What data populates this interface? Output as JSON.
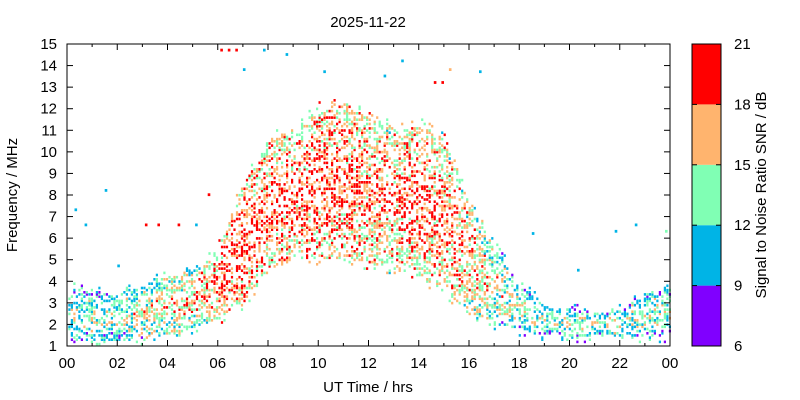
{
  "chart_data": {
    "type": "heatmap",
    "title": "2025-11-22",
    "xlabel": "UT Time / hrs",
    "ylabel": "Frequency / MHz",
    "xlim": [
      0,
      24
    ],
    "ylim": [
      1,
      15
    ],
    "x_tick_labels": [
      "00",
      "02",
      "04",
      "06",
      "08",
      "10",
      "12",
      "14",
      "16",
      "18",
      "20",
      "22",
      "00"
    ],
    "y_tick_labels": [
      "1",
      "2",
      "3",
      "4",
      "5",
      "6",
      "7",
      "8",
      "9",
      "10",
      "11",
      "12",
      "13",
      "14",
      "15"
    ],
    "colorbar": {
      "label": "Signal to Noise Ratio SNR / dB",
      "range": [
        6,
        21
      ],
      "tick_labels": [
        "6",
        "9",
        "12",
        "15",
        "18",
        "21"
      ],
      "bins": [
        {
          "from": 6,
          "to": 9,
          "color": "#8000ff"
        },
        {
          "from": 9,
          "to": 12,
          "color": "#00b4e6"
        },
        {
          "from": 12,
          "to": 15,
          "color": "#80ffb4"
        },
        {
          "from": 15,
          "to": 18,
          "color": "#ffb46e"
        },
        {
          "from": 18,
          "to": 21,
          "color": "#ff0000"
        }
      ]
    },
    "grid": false,
    "band_profile": [
      {
        "hour": 0,
        "low": 1.2,
        "high": 3.6,
        "snr": 10.5
      },
      {
        "hour": 1,
        "low": 1.2,
        "high": 3.4,
        "snr": 11.5
      },
      {
        "hour": 2,
        "low": 1.2,
        "high": 3.3,
        "snr": 11.0
      },
      {
        "hour": 3,
        "low": 1.3,
        "high": 3.7,
        "snr": 12.5
      },
      {
        "hour": 4,
        "low": 1.5,
        "high": 4.2,
        "snr": 13.0
      },
      {
        "hour": 5,
        "low": 1.8,
        "high": 4.5,
        "snr": 13.5
      },
      {
        "hour": 6,
        "low": 2.2,
        "high": 5.5,
        "snr": 15.5
      },
      {
        "hour": 7,
        "low": 3.0,
        "high": 8.5,
        "snr": 16.5
      },
      {
        "hour": 8,
        "low": 4.5,
        "high": 10.5,
        "snr": 16.0
      },
      {
        "hour": 9,
        "low": 5.0,
        "high": 11.0,
        "snr": 15.5
      },
      {
        "hour": 10,
        "low": 5.0,
        "high": 12.0,
        "snr": 16.5
      },
      {
        "hour": 11,
        "low": 5.0,
        "high": 12.2,
        "snr": 16.0
      },
      {
        "hour": 12,
        "low": 4.8,
        "high": 11.5,
        "snr": 15.5
      },
      {
        "hour": 13,
        "low": 4.5,
        "high": 11.0,
        "snr": 15.0
      },
      {
        "hour": 14,
        "low": 4.2,
        "high": 11.3,
        "snr": 16.0
      },
      {
        "hour": 15,
        "low": 3.5,
        "high": 10.5,
        "snr": 15.5
      },
      {
        "hour": 16,
        "low": 2.5,
        "high": 7.5,
        "snr": 14.5
      },
      {
        "hour": 17,
        "low": 2.0,
        "high": 5.5,
        "snr": 12.5
      },
      {
        "hour": 18,
        "low": 1.7,
        "high": 3.8,
        "snr": 11.5
      },
      {
        "hour": 19,
        "low": 1.5,
        "high": 2.8,
        "snr": 11.0
      },
      {
        "hour": 20,
        "low": 1.4,
        "high": 2.7,
        "snr": 11.5
      },
      {
        "hour": 21,
        "low": 1.4,
        "high": 2.5,
        "snr": 11.0
      },
      {
        "hour": 22,
        "low": 1.4,
        "high": 2.6,
        "snr": 11.5
      },
      {
        "hour": 23,
        "low": 1.4,
        "high": 3.4,
        "snr": 11.5
      },
      {
        "hour": 24,
        "low": 1.4,
        "high": 3.6,
        "snr": 11.0
      }
    ],
    "isolated_points": [
      {
        "hour": 0.3,
        "freq": 7.3,
        "snr": 10
      },
      {
        "hour": 0.7,
        "freq": 6.6,
        "snr": 10
      },
      {
        "hour": 1.5,
        "freq": 8.2,
        "snr": 10
      },
      {
        "hour": 2.0,
        "freq": 4.7,
        "snr": 10
      },
      {
        "hour": 3.1,
        "freq": 6.6,
        "snr": 19
      },
      {
        "hour": 3.6,
        "freq": 6.6,
        "snr": 19
      },
      {
        "hour": 4.4,
        "freq": 6.6,
        "snr": 19
      },
      {
        "hour": 5.1,
        "freq": 6.6,
        "snr": 10
      },
      {
        "hour": 5.6,
        "freq": 8.0,
        "snr": 20
      },
      {
        "hour": 6.1,
        "freq": 14.7,
        "snr": 20
      },
      {
        "hour": 6.4,
        "freq": 14.7,
        "snr": 20
      },
      {
        "hour": 6.7,
        "freq": 14.7,
        "snr": 20
      },
      {
        "hour": 7.0,
        "freq": 13.8,
        "snr": 10
      },
      {
        "hour": 7.8,
        "freq": 14.7,
        "snr": 10
      },
      {
        "hour": 8.7,
        "freq": 14.5,
        "snr": 10
      },
      {
        "hour": 10.2,
        "freq": 13.7,
        "snr": 10
      },
      {
        "hour": 12.6,
        "freq": 13.5,
        "snr": 10
      },
      {
        "hour": 13.3,
        "freq": 14.2,
        "snr": 10
      },
      {
        "hour": 14.6,
        "freq": 13.2,
        "snr": 20
      },
      {
        "hour": 14.9,
        "freq": 13.2,
        "snr": 20
      },
      {
        "hour": 15.2,
        "freq": 13.8,
        "snr": 16
      },
      {
        "hour": 16.4,
        "freq": 13.7,
        "snr": 10
      },
      {
        "hour": 18.5,
        "freq": 6.2,
        "snr": 10
      },
      {
        "hour": 20.3,
        "freq": 4.5,
        "snr": 10
      },
      {
        "hour": 21.8,
        "freq": 6.3,
        "snr": 10
      },
      {
        "hour": 22.6,
        "freq": 6.6,
        "snr": 10
      },
      {
        "hour": 23.8,
        "freq": 6.3,
        "snr": 13
      }
    ]
  }
}
